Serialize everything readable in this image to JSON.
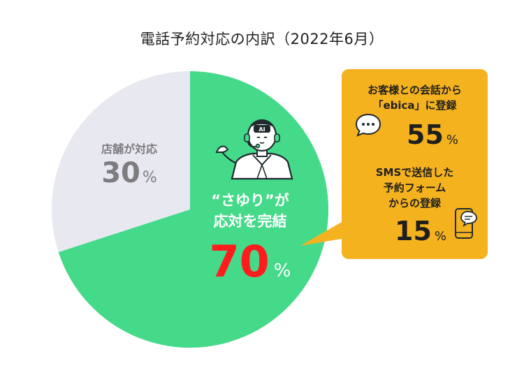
{
  "title": "電話予約対応の内訳（2022年6月）",
  "colors": {
    "ai": "#45d98a",
    "store": "#e8e8f0",
    "callout": "#f5b21f",
    "highlight": "#ff1c1c"
  },
  "chart_data": {
    "type": "pie",
    "title": "電話予約対応の内訳（2022年6月）",
    "slices": [
      {
        "label_lines": [
          "“さゆり”が",
          "応対を完結"
        ],
        "value": 70,
        "unit": "%",
        "color": "#45d98a"
      },
      {
        "label": "店舗が対応",
        "value": 30,
        "unit": "%",
        "color": "#e8e8f0"
      }
    ],
    "breakdown": {
      "of": "“さゆり”が応対を完結",
      "items": [
        {
          "label_lines": [
            "お客様との会話から",
            "「ebica」に登録"
          ],
          "value": 55,
          "unit": "%",
          "icon": "speech-bubble-icon"
        },
        {
          "label_lines": [
            "SMSで送信した",
            "予約フォーム",
            "からの登録"
          ],
          "value": 15,
          "unit": "%",
          "icon": "smartphone-chat-icon"
        }
      ]
    }
  }
}
